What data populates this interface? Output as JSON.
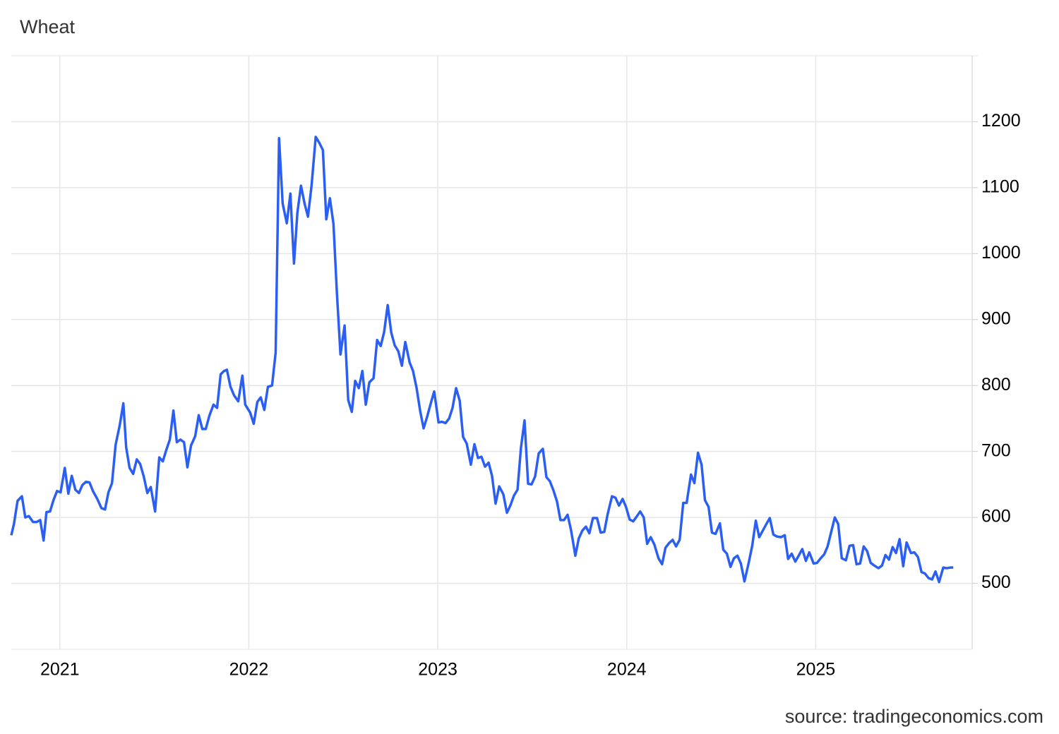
{
  "chart_data": {
    "type": "line",
    "title": "Wheat",
    "source": "source: tradingeconomics.com",
    "color": "#2b5ff4",
    "grid": true,
    "y_axis_side": "right",
    "xlim": [
      2020.743,
      2025.828
    ],
    "xticks": [
      2021,
      2022,
      2023,
      2024,
      2025
    ],
    "ylim": [
      400,
      1300
    ],
    "yticks": [
      500,
      600,
      700,
      800,
      900,
      1000,
      1100,
      1200
    ],
    "x": [
      2020.743,
      2020.757,
      2020.776,
      2020.799,
      2020.817,
      2020.836,
      2020.858,
      2020.877,
      2020.896,
      2020.914,
      2020.929,
      2020.948,
      2020.966,
      2020.985,
      2021.004,
      2021.026,
      2021.045,
      2021.063,
      2021.082,
      2021.101,
      2021.119,
      2021.138,
      2021.157,
      2021.175,
      2021.198,
      2021.22,
      2021.239,
      2021.257,
      2021.276,
      2021.295,
      2021.317,
      2021.336,
      2021.351,
      2021.369,
      2021.388,
      2021.407,
      2021.425,
      2021.444,
      2021.463,
      2021.481,
      2021.504,
      2021.526,
      2021.545,
      2021.563,
      2021.582,
      2021.601,
      2021.619,
      2021.638,
      2021.657,
      2021.675,
      2021.694,
      2021.716,
      2021.735,
      2021.754,
      2021.772,
      2021.791,
      2021.813,
      2021.832,
      2021.851,
      2021.869,
      2021.884,
      2021.903,
      2021.922,
      2021.944,
      2021.966,
      2021.981,
      2022.007,
      2022.026,
      2022.045,
      2022.063,
      2022.082,
      2022.101,
      2022.123,
      2022.142,
      2022.16,
      2022.179,
      2022.201,
      2022.22,
      2022.239,
      2022.257,
      2022.276,
      2022.295,
      2022.313,
      2022.332,
      2022.354,
      2022.373,
      2022.392,
      2022.41,
      2022.429,
      2022.448,
      2022.466,
      2022.485,
      2022.507,
      2022.526,
      2022.545,
      2022.563,
      2022.582,
      2022.601,
      2022.619,
      2022.638,
      2022.66,
      2022.679,
      2022.698,
      2022.716,
      2022.735,
      2022.754,
      2022.772,
      2022.791,
      2022.81,
      2022.828,
      2022.851,
      2022.869,
      2022.888,
      2022.907,
      2022.925,
      2022.944,
      2022.963,
      2022.981,
      2023.004,
      2023.022,
      2023.041,
      2023.06,
      2023.078,
      2023.097,
      2023.116,
      2023.134,
      2023.153,
      2023.175,
      2023.194,
      2023.213,
      2023.231,
      2023.25,
      2023.269,
      2023.287,
      2023.306,
      2023.325,
      2023.347,
      2023.366,
      2023.384,
      2023.403,
      2023.422,
      2023.44,
      2023.459,
      2023.478,
      2023.496,
      2023.515,
      2023.534,
      2023.556,
      2023.575,
      2023.593,
      2023.612,
      2023.631,
      2023.649,
      2023.668,
      2023.687,
      2023.705,
      2023.728,
      2023.746,
      2023.765,
      2023.784,
      2023.802,
      2023.821,
      2023.843,
      2023.862,
      2023.881,
      2023.899,
      2023.922,
      2023.94,
      2023.959,
      2023.978,
      2023.996,
      2024.015,
      2024.034,
      2024.052,
      2024.071,
      2024.09,
      2024.108,
      2024.127,
      2024.146,
      2024.168,
      2024.187,
      2024.205,
      2024.224,
      2024.243,
      2024.261,
      2024.28,
      2024.299,
      2024.317,
      2024.34,
      2024.358,
      2024.377,
      2024.396,
      2024.414,
      2024.433,
      2024.451,
      2024.47,
      2024.493,
      2024.511,
      2024.53,
      2024.549,
      2024.567,
      2024.586,
      2024.604,
      2024.623,
      2024.646,
      2024.664,
      2024.683,
      2024.701,
      2024.72,
      2024.739,
      2024.757,
      2024.776,
      2024.795,
      2024.817,
      2024.836,
      2024.854,
      2024.873,
      2024.892,
      2024.91,
      2024.929,
      2024.948,
      2024.966,
      2024.989,
      2025.007,
      2025.026,
      2025.045,
      2025.063,
      2025.082,
      2025.101,
      2025.119,
      2025.138,
      2025.16,
      2025.179,
      2025.198,
      2025.216,
      2025.235,
      2025.254,
      2025.272,
      2025.291,
      2025.31,
      2025.332,
      2025.351,
      2025.369,
      2025.388,
      2025.407,
      2025.425,
      2025.444,
      2025.463,
      2025.481,
      2025.504,
      2025.522,
      2025.541,
      2025.56,
      2025.578,
      2025.597,
      2025.616,
      2025.634,
      2025.653,
      2025.675,
      2025.694,
      2025.713,
      2025.728
    ],
    "values": [
      573,
      590,
      625,
      632,
      600,
      602,
      593,
      593,
      596,
      565,
      608,
      609,
      626,
      640,
      638,
      675,
      636,
      663,
      642,
      637,
      649,
      654,
      653,
      640,
      628,
      614,
      612,
      638,
      652,
      710,
      740,
      773,
      706,
      675,
      666,
      688,
      681,
      662,
      637,
      646,
      609,
      691,
      685,
      702,
      718,
      762,
      714,
      718,
      714,
      676,
      709,
      723,
      755,
      734,
      734,
      754,
      771,
      766,
      817,
      822,
      824,
      798,
      785,
      776,
      815,
      771,
      759,
      742,
      775,
      782,
      763,
      798,
      800,
      850,
      1175,
      1076,
      1046,
      1091,
      985,
      1062,
      1103,
      1076,
      1056,
      1103,
      1177,
      1168,
      1157,
      1052,
      1084,
      1045,
      941,
      847,
      891,
      778,
      760,
      807,
      796,
      822,
      771,
      805,
      811,
      869,
      860,
      881,
      922,
      880,
      861,
      852,
      830,
      866,
      835,
      822,
      796,
      761,
      735,
      753,
      773,
      791,
      744,
      745,
      743,
      750,
      766,
      796,
      777,
      722,
      712,
      680,
      711,
      690,
      692,
      677,
      683,
      663,
      621,
      647,
      635,
      607,
      618,
      633,
      642,
      705,
      747,
      651,
      650,
      662,
      697,
      704,
      661,
      655,
      641,
      624,
      596,
      596,
      604,
      581,
      542,
      568,
      580,
      586,
      576,
      599,
      599,
      577,
      578,
      605,
      632,
      630,
      618,
      628,
      616,
      597,
      594,
      601,
      609,
      600,
      560,
      570,
      559,
      538,
      529,
      554,
      561,
      566,
      556,
      566,
      622,
      622,
      665,
      652,
      698,
      680,
      626,
      616,
      577,
      575,
      591,
      551,
      545,
      525,
      538,
      542,
      530,
      503,
      532,
      557,
      595,
      570,
      580,
      590,
      599,
      574,
      571,
      570,
      573,
      537,
      545,
      533,
      542,
      552,
      534,
      547,
      530,
      531,
      538,
      544,
      556,
      578,
      600,
      590,
      538,
      535,
      557,
      558,
      529,
      530,
      556,
      549,
      531,
      527,
      523,
      527,
      543,
      536,
      555,
      546,
      567,
      526,
      562,
      546,
      547,
      540,
      517,
      515,
      508,
      506,
      518,
      502,
      524,
      523,
      524,
      524
    ]
  }
}
